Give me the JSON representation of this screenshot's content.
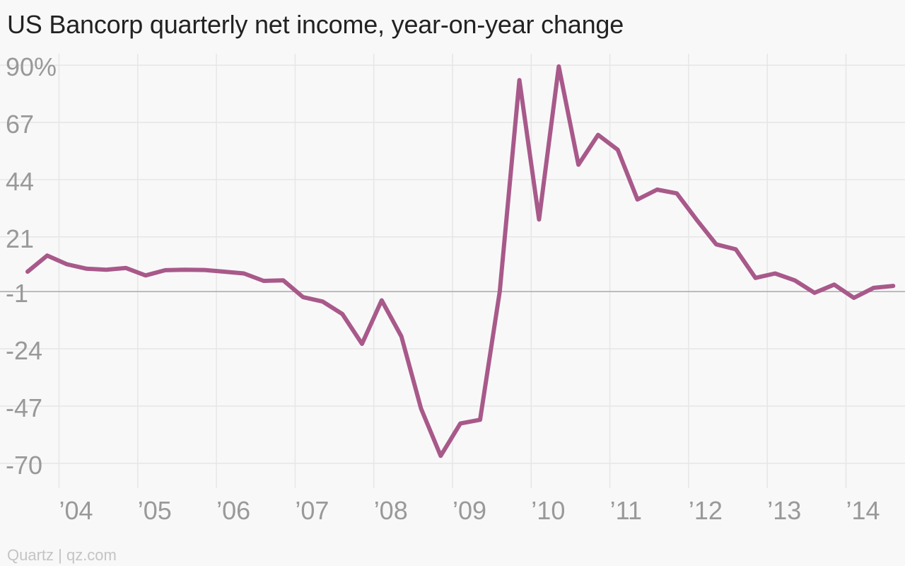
{
  "chart_data": {
    "type": "line",
    "title": "US Bancorp quarterly net income, year-on-year change",
    "source": "Quartz | qz.com",
    "y_ticks": [
      90,
      67,
      44,
      21,
      -1,
      -24,
      -47,
      -70
    ],
    "y_tick_labels": [
      "90%",
      "67",
      "44",
      "21",
      "-1",
      "-24",
      "-47",
      "-70"
    ],
    "ylim": [
      -80,
      98
    ],
    "xlim": [
      2003.25,
      2014.75
    ],
    "x_ticks": [
      2004,
      2005,
      2006,
      2007,
      2008,
      2009,
      2010,
      2011,
      2012,
      2013,
      2014
    ],
    "x_tick_labels": [
      "’04",
      "’05",
      "’06",
      "’07",
      "’08",
      "’09",
      "’10",
      "’11",
      "’12",
      "’13",
      "’14"
    ],
    "baseline": -1,
    "grid": true,
    "colors": {
      "line": "#a8598a",
      "grid": "#e6e6e6",
      "baseline": "#a9a9a9",
      "tick_text": "#999999"
    },
    "series": [
      {
        "x": [
          2003.6,
          2003.85,
          2004.1,
          2004.35,
          2004.6,
          2004.85,
          2005.1,
          2005.35,
          2005.6,
          2005.85,
          2006.1,
          2006.35,
          2006.6,
          2006.85,
          2007.1,
          2007.35,
          2007.6,
          2007.85,
          2008.1,
          2008.35,
          2008.6,
          2008.85,
          2009.1,
          2009.35,
          2009.6,
          2009.85,
          2010.1,
          2010.35,
          2010.6,
          2010.85,
          2011.1,
          2011.35,
          2011.6,
          2011.85,
          2012.1,
          2012.35,
          2012.6,
          2012.85,
          2013.1,
          2013.35,
          2013.6,
          2013.85,
          2014.1,
          2014.35,
          2014.6
        ],
        "values": [
          7,
          13.5,
          10,
          8.2,
          7.8,
          8.5,
          5.5,
          7.6,
          7.8,
          7.7,
          7,
          6.3,
          3.3,
          3.5,
          -3.2,
          -5,
          -10,
          -22,
          -4.5,
          -19,
          -48,
          -67,
          -54,
          -52.5,
          -1,
          84,
          28,
          89.5,
          50,
          62,
          56,
          36,
          40,
          38.5,
          28,
          18,
          16,
          4.5,
          6.3,
          3.5,
          -1.5,
          1.8,
          -3.5,
          0.5,
          1.3
        ]
      }
    ]
  }
}
